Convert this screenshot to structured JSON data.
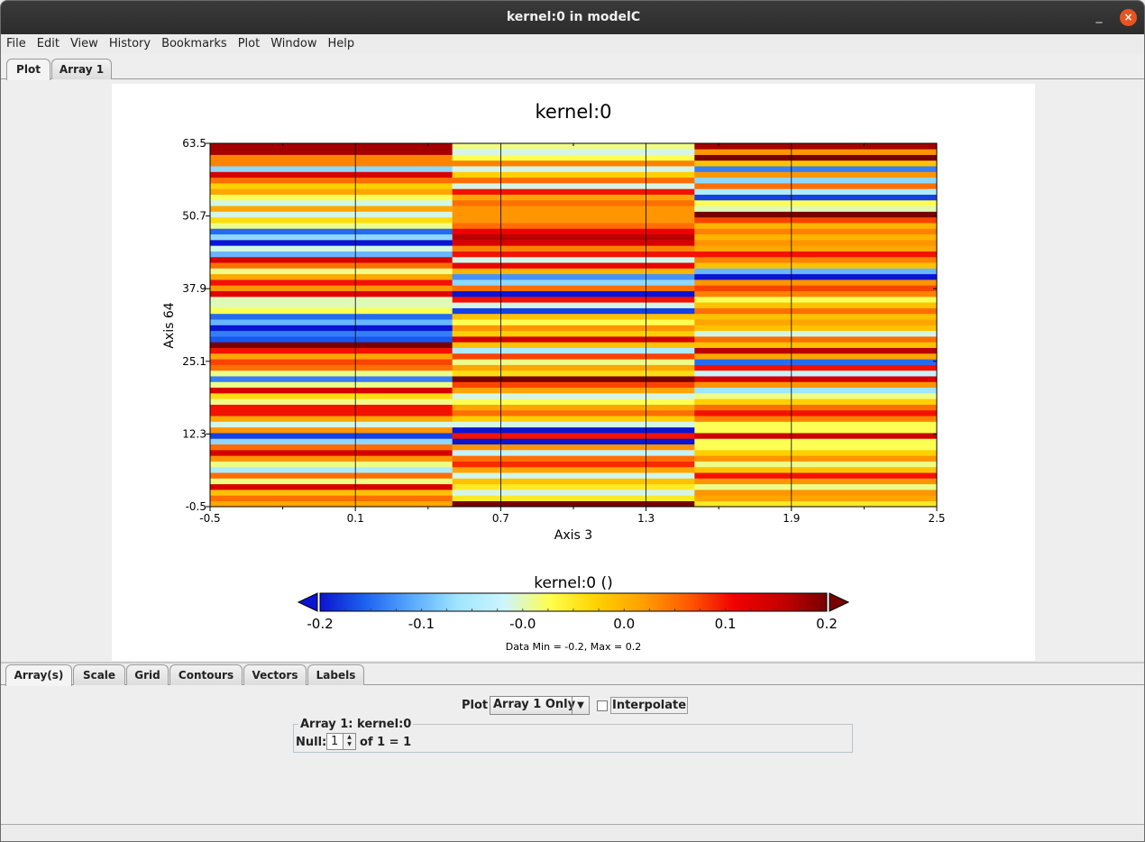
{
  "window": {
    "title": "kernel:0 in modelC",
    "minimize": "_",
    "close": "×"
  },
  "menubar": {
    "items": [
      "File",
      "Edit",
      "View",
      "History",
      "Bookmarks",
      "Plot",
      "Window",
      "Help"
    ]
  },
  "top_tabs": [
    {
      "label": "Plot",
      "active": true
    },
    {
      "label": "Array 1",
      "active": false
    }
  ],
  "bottom_tabs": [
    {
      "label": "Array(s)",
      "active": true
    },
    {
      "label": "Scale",
      "active": false
    },
    {
      "label": "Grid",
      "active": false
    },
    {
      "label": "Contours",
      "active": false
    },
    {
      "label": "Vectors",
      "active": false
    },
    {
      "label": "Labels",
      "active": false
    }
  ],
  "controls": {
    "plot_label": "Plot",
    "plot_select_value": "Array 1 Only",
    "interpolate_label": "Interpolate",
    "interpolate_checked": false,
    "array_group_title": "Array 1: kernel:0",
    "null_label": "Null:",
    "null_value": "1",
    "null_of": "of 1 = 1"
  },
  "chart_data": {
    "type": "heatmap",
    "title": "kernel:0",
    "xlabel": "Axis 3",
    "ylabel": "Axis 64",
    "xlim": [
      -0.5,
      2.5
    ],
    "ylim": [
      -0.5,
      63.5
    ],
    "x_ticks": [
      "-0.5",
      "0.1",
      "0.7",
      "1.3",
      "1.9",
      "2.5"
    ],
    "y_ticks": [
      "-0.5",
      "12.3",
      "25.1",
      "37.9",
      "50.7",
      "63.5"
    ],
    "columns": [
      0,
      1,
      2
    ],
    "rows": 64,
    "values": [
      [
        0.05,
        0.2,
        0.0
      ],
      [
        0.08,
        0.0,
        0.05
      ],
      [
        0.03,
        -0.05,
        0.06
      ],
      [
        0.15,
        0.0,
        -0.03
      ],
      [
        -0.03,
        0.03,
        0.06
      ],
      [
        0.08,
        -0.05,
        0.12
      ],
      [
        -0.08,
        0.05,
        0.03
      ],
      [
        -0.03,
        0.11,
        -0.03
      ],
      [
        0.06,
        0.08,
        0.06
      ],
      [
        0.15,
        -0.06,
        0.02
      ],
      [
        0.08,
        0.06,
        -0.02
      ],
      [
        -0.1,
        -0.2,
        -0.02
      ],
      [
        -0.18,
        0.12,
        0.16
      ],
      [
        0.06,
        -0.2,
        -0.02
      ],
      [
        -0.05,
        -0.05,
        -0.02
      ],
      [
        0.05,
        0.02,
        0.07
      ],
      [
        0.12,
        0.08,
        0.12
      ],
      [
        0.12,
        0.05,
        0.08
      ],
      [
        -0.03,
        -0.02,
        0.02
      ],
      [
        0.01,
        -0.05,
        -0.03
      ],
      [
        0.15,
        0.05,
        -0.09
      ],
      [
        -0.03,
        0.1,
        0.06
      ],
      [
        -0.15,
        0.2,
        0.15
      ],
      [
        -0.03,
        0.01,
        -0.06
      ],
      [
        0.08,
        0.05,
        0.12
      ],
      [
        0.1,
        -0.03,
        -0.16
      ],
      [
        0.05,
        0.1,
        0.05
      ],
      [
        0.12,
        -0.08,
        0.17
      ],
      [
        0.2,
        0.03,
        0.03
      ],
      [
        -0.17,
        0.15,
        0.08
      ],
      [
        -0.15,
        0.02,
        -0.05
      ],
      [
        -0.2,
        0.06,
        0.03
      ],
      [
        -0.12,
        -0.02,
        0.05
      ],
      [
        -0.16,
        0.03,
        0.03
      ],
      [
        -0.02,
        -0.18,
        0.08
      ],
      [
        -0.04,
        -0.05,
        0.03
      ],
      [
        -0.04,
        0.12,
        -0.02
      ],
      [
        0.14,
        -0.2,
        0.07
      ],
      [
        0.06,
        0.08,
        0.1
      ],
      [
        0.12,
        -0.1,
        0.06
      ],
      [
        0.05,
        -0.14,
        -0.2
      ],
      [
        -0.03,
        0.04,
        -0.12
      ],
      [
        0.08,
        0.13,
        0.03
      ],
      [
        0.15,
        -0.05,
        0.07
      ],
      [
        -0.12,
        0.12,
        0.12
      ],
      [
        -0.05,
        0.07,
        0.05
      ],
      [
        -0.2,
        0.15,
        0.06
      ],
      [
        -0.1,
        0.17,
        0.04
      ],
      [
        -0.16,
        0.13,
        0.07
      ],
      [
        -0.03,
        0.08,
        0.04
      ],
      [
        0.01,
        0.06,
        0.1
      ],
      [
        -0.05,
        0.06,
        0.2
      ],
      [
        0.05,
        0.06,
        -0.04
      ],
      [
        -0.05,
        0.08,
        -0.02
      ],
      [
        -0.02,
        0.05,
        -0.18
      ],
      [
        0.05,
        0.12,
        -0.08
      ],
      [
        0.02,
        -0.05,
        0.08
      ],
      [
        0.08,
        0.08,
        -0.1
      ],
      [
        0.15,
        0.02,
        0.06
      ],
      [
        -0.1,
        -0.05,
        -0.15
      ],
      [
        0.07,
        0.07,
        0.03
      ],
      [
        0.07,
        -0.02,
        0.2
      ],
      [
        0.18,
        -0.05,
        0.06
      ],
      [
        0.18,
        -0.03,
        0.18
      ]
    ],
    "colorbar": {
      "label": "kernel:0 ()",
      "range": [
        -0.2,
        0.2
      ],
      "ticks": [
        "-0.2",
        "-0.1",
        "-0.0",
        "0.0",
        "0.1",
        "0.2"
      ],
      "colors": [
        "#0a14d2",
        "#1e64f0",
        "#5aaaff",
        "#a0e6ff",
        "#cdf5ff",
        "#ffff4b",
        "#ffd200",
        "#ffa000",
        "#ff5a00",
        "#f00000",
        "#c80000",
        "#780000"
      ]
    },
    "data_range_text": "Data Min = -0.2, Max = 0.2"
  }
}
